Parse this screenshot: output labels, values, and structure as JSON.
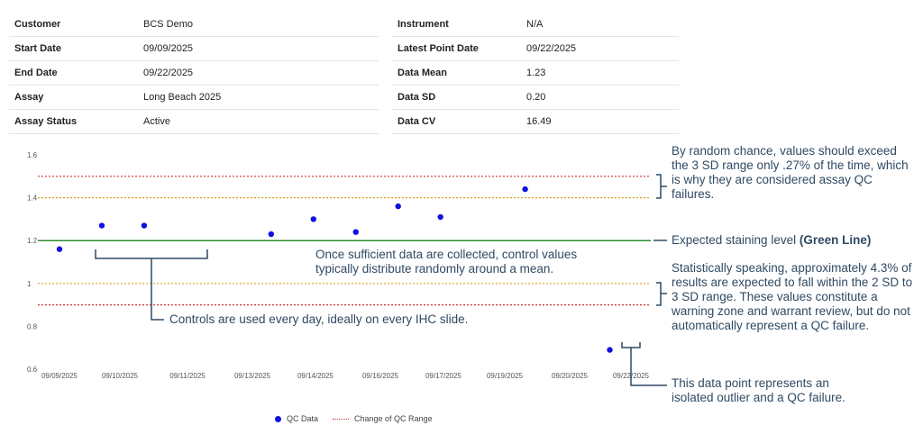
{
  "info": {
    "left": [
      {
        "key": "Customer",
        "value": "BCS Demo"
      },
      {
        "key": "Start Date",
        "value": "09/09/2025"
      },
      {
        "key": "End Date",
        "value": "09/22/2025"
      },
      {
        "key": "Assay",
        "value": "Long Beach 2025"
      },
      {
        "key": "Assay Status",
        "value": "Active"
      }
    ],
    "right": [
      {
        "key": "Instrument",
        "value": "N/A"
      },
      {
        "key": "Latest Point Date",
        "value": "09/22/2025"
      },
      {
        "key": "Data Mean",
        "value": "1.23"
      },
      {
        "key": "Data SD",
        "value": "0.20"
      },
      {
        "key": "Data CV",
        "value": "16.49"
      }
    ]
  },
  "chart_data": {
    "type": "scatter",
    "title": "",
    "xlabel": "",
    "ylabel": "",
    "ylim": [
      0.6,
      1.6
    ],
    "y_ticks": [
      "0.6",
      "0.8",
      "1",
      "1.2",
      "1.4",
      "1.6"
    ],
    "x_tick_labels": [
      "09/09/2025",
      "09/10/2025",
      "09/11/2025",
      "09/13/2025",
      "09/14/2025",
      "09/16/2025",
      "09/17/2025",
      "09/19/2025",
      "09/20/2025",
      "09/22/2025"
    ],
    "grid": false,
    "legend_position": "bottom-center",
    "series": [
      {
        "name": "QC Data",
        "color": "#1010e0",
        "points": [
          {
            "x": "09/09/2025",
            "y": 1.16
          },
          {
            "x": "09/10/2025",
            "y": 1.27
          },
          {
            "x": "09/11/2025",
            "y": 1.27
          },
          {
            "x": "09/14/2025",
            "y": 1.23
          },
          {
            "x": "09/15/2025",
            "y": 1.3
          },
          {
            "x": "09/16/2025",
            "y": 1.24
          },
          {
            "x": "09/17/2025",
            "y": 1.36
          },
          {
            "x": "09/18/2025",
            "y": 1.31
          },
          {
            "x": "09/20/2025",
            "y": 1.44
          },
          {
            "x": "09/22/2025",
            "y": 0.69
          }
        ]
      }
    ],
    "reference_lines": [
      {
        "y": 1.2,
        "color": "#2e8b2e",
        "style": "solid"
      },
      {
        "y": 1.4,
        "color": "#e0a020",
        "style": "dotted"
      },
      {
        "y": 1.0,
        "color": "#e0a020",
        "style": "dotted"
      },
      {
        "y": 1.5,
        "color": "#cc3333",
        "style": "dotted"
      },
      {
        "y": 0.9,
        "color": "#cc3333",
        "style": "dotted"
      }
    ],
    "legend": [
      {
        "label": "QC Data",
        "marker": "dot",
        "color": "#1010e0"
      },
      {
        "label": "Change of QC Range",
        "marker": "dotted-line",
        "color": "#cc3333"
      }
    ]
  },
  "annotations": {
    "top_right": "By random chance, values should exceed the 3 SD range only .27% of the time, which is why they are considered assay QC failures.",
    "expected_prefix": "Expected staining level ",
    "expected_bold": "(Green Line)",
    "middle_right": "Statistically speaking, approximately 4.3% of results are expected to fall within the 2 SD to 3 SD range. These values constitute a warning zone and warrant review, but do not automatically represent a QC failure.",
    "center": "Once sufficient data are collected, control values typically distribute randomly around a mean.",
    "controls": "Controls are used every day, ideally on every IHC slide.",
    "outlier": "This data point represents an isolated outlier and a QC failure."
  }
}
